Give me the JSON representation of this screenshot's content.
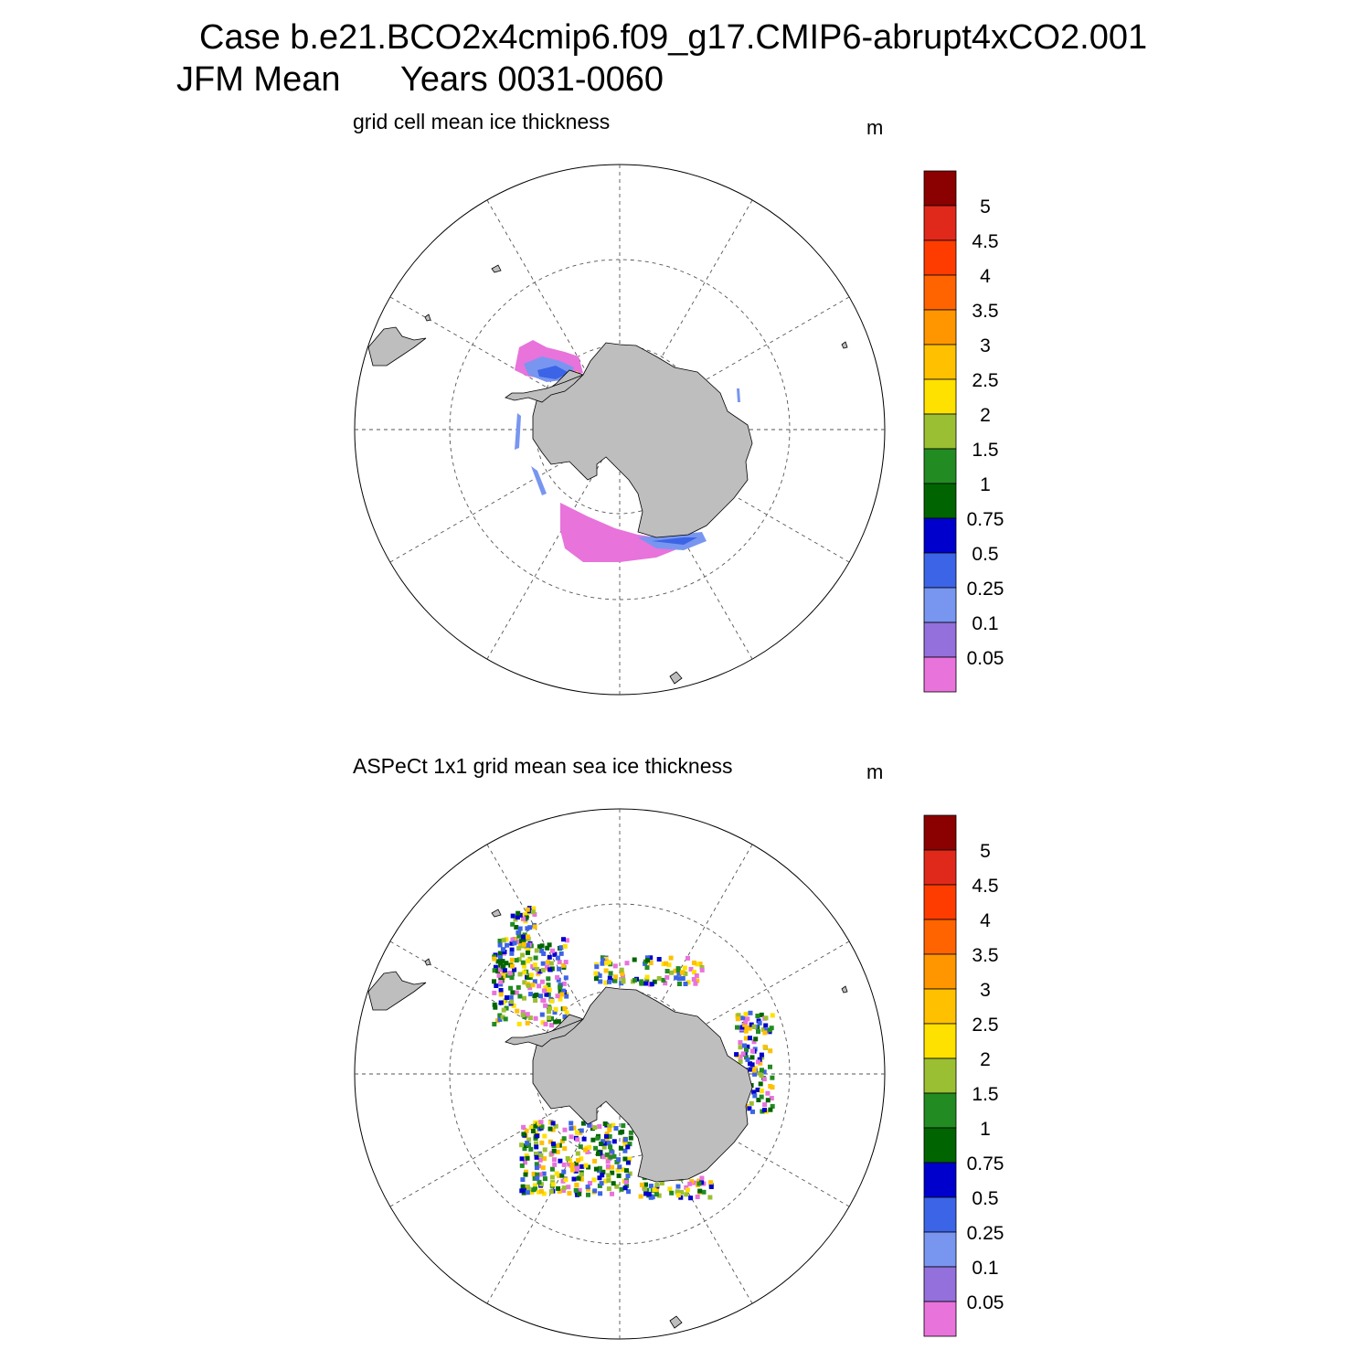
{
  "header": {
    "case_title": "Case b.e21.BCO2x4cmip6.f09_g17.CMIP6-abrupt4xCO2.001",
    "season": "JFM Mean",
    "years": "Years 0031-0060"
  },
  "colorbar": {
    "unit": "m",
    "tick_labels": [
      "5",
      "4.5",
      "4",
      "3.5",
      "3",
      "2.5",
      "2",
      "1.5",
      "1",
      "0.75",
      "0.5",
      "0.25",
      "0.1",
      "0.05"
    ],
    "colors": [
      "#8b0000",
      "#e0291a",
      "#ff3c00",
      "#ff6400",
      "#ff9600",
      "#ffc000",
      "#ffe100",
      "#9bbf32",
      "#228b22",
      "#006400",
      "#0000cd",
      "#3c64e6",
      "#7896f0",
      "#9370db",
      "#e873db"
    ]
  },
  "panels": [
    {
      "title": "grid cell mean ice thickness",
      "unit": "m",
      "map_data": {
        "type": "polar-stereographic",
        "hemisphere": "south",
        "field": "grid cell mean ice thickness",
        "units": "m",
        "land_color": "#bebebe"
      }
    },
    {
      "title": "ASPeCt 1x1 grid mean sea ice thickness",
      "unit": "m",
      "map_data": {
        "type": "polar-stereographic",
        "hemisphere": "south",
        "field": "ASPeCt 1x1 grid mean sea ice thickness",
        "units": "m",
        "land_color": "#bebebe"
      }
    }
  ]
}
